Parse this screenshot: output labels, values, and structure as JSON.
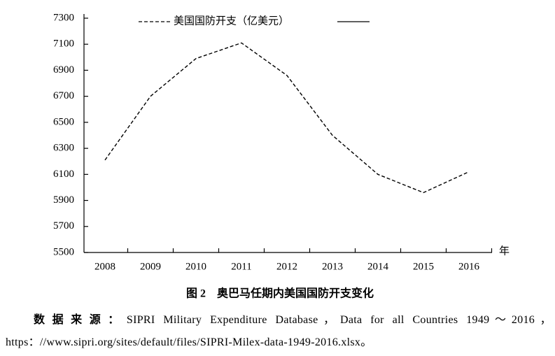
{
  "chart_data": {
    "type": "line",
    "caption": "图 2　奥巴马任期内美国国防开支变化",
    "xlabel": "年",
    "categories": [
      "2008",
      "2009",
      "2010",
      "2011",
      "2012",
      "2013",
      "2014",
      "2015",
      "2016"
    ],
    "series": [
      {
        "name": "美国国防开支（亿美元）",
        "color": "#000000",
        "dash": true,
        "values": [
          6210,
          6700,
          6990,
          7110,
          6860,
          6400,
          6100,
          5960,
          6120
        ]
      }
    ],
    "ylim": [
      5500,
      7300
    ],
    "yticks": [
      5500,
      5700,
      5900,
      6100,
      6300,
      6500,
      6700,
      6900,
      7100,
      7300
    ],
    "grid": false,
    "note_label": "数据来源：",
    "note_text": "SIPRI Military Expenditure Database，Data for all Countries 1949～2016，https：//www.sipri.org/sites/default/files/SIPRI-Milex-data-1949-2016.xlsx。"
  }
}
